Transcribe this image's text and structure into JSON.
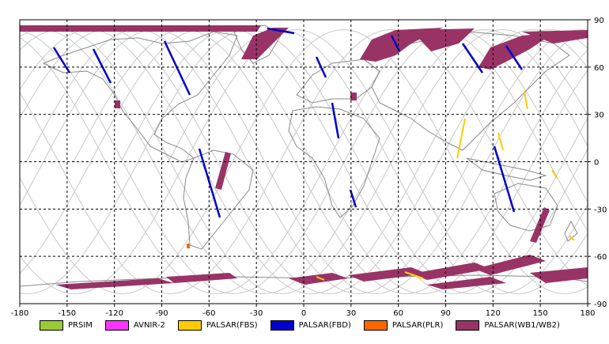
{
  "map": {
    "x_ticks": [
      "-180",
      "-150",
      "-120",
      "-90",
      "-60",
      "-30",
      "0",
      "30",
      "60",
      "90",
      "120",
      "150",
      "180"
    ],
    "y_ticks": [
      "90",
      "60",
      "30",
      "0",
      "-30",
      "-60",
      "-90"
    ]
  },
  "legend": [
    {
      "label": "PRSIM",
      "color": "#99cc33"
    },
    {
      "label": "AVNIR-2",
      "color": "#ff33ff"
    },
    {
      "label": "PALSAR(FBS)",
      "color": "#ffcc00"
    },
    {
      "label": "PALSAR(FBD)",
      "color": "#0000cc"
    },
    {
      "label": "PALSAR(PLR)",
      "color": "#ff6600"
    },
    {
      "label": "PALSAR(WB1/WB2)",
      "color": "#993366"
    }
  ]
}
